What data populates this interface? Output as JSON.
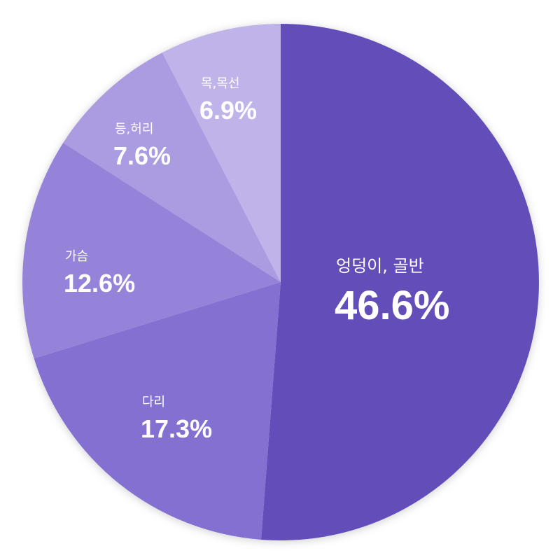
{
  "chart_data": {
    "type": "pie",
    "start_angle_deg": 0,
    "direction": "clockwise",
    "slices": [
      {
        "label": "엉덩이, 골반",
        "value": 46.6,
        "display": "46.6%",
        "color": "#634db9"
      },
      {
        "label": "다리",
        "value": 17.3,
        "display": "17.3%",
        "color": "#8370d1"
      },
      {
        "label": "가슴",
        "value": 12.6,
        "display": "12.6%",
        "color": "#9582d9"
      },
      {
        "label": "등,허리",
        "value": 7.6,
        "display": "7.6%",
        "color": "#ab9ce2"
      },
      {
        "label": "목,목선",
        "value": 6.9,
        "display": "6.9%",
        "color": "#c0b3ea"
      }
    ]
  }
}
